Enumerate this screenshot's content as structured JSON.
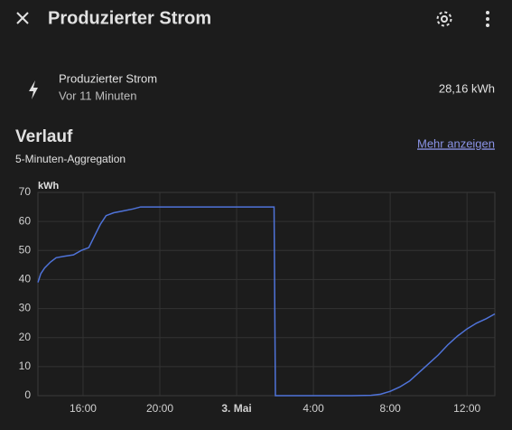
{
  "header": {
    "title": "Produzierter Strom"
  },
  "entity": {
    "name": "Produzierter Strom",
    "updated": "Vor 11 Minuten",
    "state": "28,16 kWh"
  },
  "history": {
    "title": "Verlauf",
    "subtitle": "5-Minuten-Aggregation",
    "link": "Mehr anzeigen"
  },
  "chart_data": {
    "type": "line",
    "y_label": "kWh",
    "x": [
      13.65,
      13.8,
      14.0,
      14.3,
      14.6,
      15.0,
      15.5,
      15.9,
      16.3,
      16.6,
      16.9,
      17.2,
      17.6,
      18.0,
      18.6,
      19.0,
      20.0,
      22.0,
      25.95,
      26.02,
      28.0,
      30.0,
      31.0,
      31.5,
      32.0,
      32.5,
      33.0,
      33.5,
      34.0,
      34.5,
      35.0,
      35.5,
      36.0,
      36.5,
      37.0,
      37.45
    ],
    "series": [
      {
        "name": "Produzierter Strom",
        "color": "#4f73d9",
        "values": [
          39,
          42,
          44,
          46,
          47.5,
          48,
          48.5,
          50,
          51,
          55,
          59,
          62,
          63,
          63.5,
          64.3,
          65,
          65,
          65,
          65,
          0,
          0,
          0,
          0.1,
          0.5,
          1.5,
          3,
          5,
          8,
          11,
          14,
          17.5,
          20.5,
          23,
          25,
          26.5,
          28.16
        ]
      }
    ],
    "xlim": [
      13.65,
      37.45
    ],
    "xticks": [
      {
        "value": 16,
        "label": "16:00"
      },
      {
        "value": 20,
        "label": "20:00"
      },
      {
        "value": 24,
        "label": "3. Mai"
      },
      {
        "value": 28,
        "label": "4:00"
      },
      {
        "value": 32,
        "label": "8:00"
      },
      {
        "value": 36,
        "label": "12:00"
      }
    ],
    "ylim": [
      0,
      70
    ],
    "yticks": [
      0,
      10,
      20,
      30,
      40,
      50,
      60,
      70
    ],
    "grid": true
  }
}
